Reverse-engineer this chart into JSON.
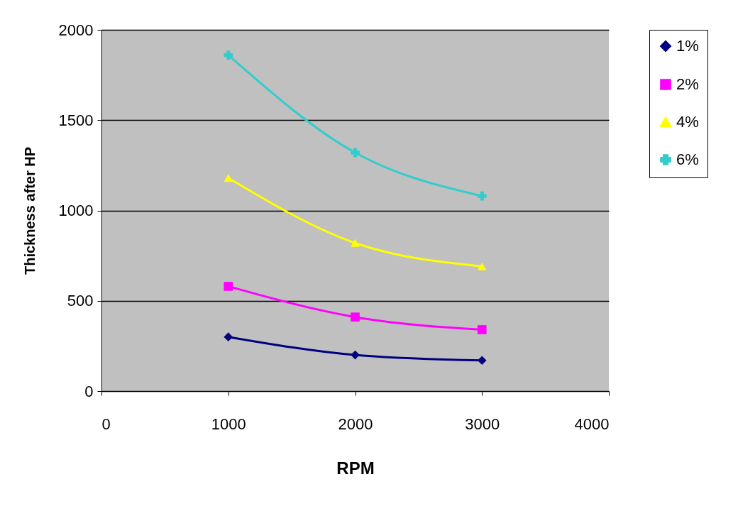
{
  "chart_data": {
    "type": "line",
    "xlabel": "RPM",
    "ylabel": "Thickness after HP",
    "x": [
      1000,
      2000,
      3000
    ],
    "series": [
      {
        "name": "1%",
        "color": "#000080",
        "marker": "diamond",
        "values": [
          300,
          200,
          170
        ]
      },
      {
        "name": "2%",
        "color": "#ff00ff",
        "marker": "square",
        "values": [
          580,
          410,
          340
        ]
      },
      {
        "name": "4%",
        "color": "#ffff00",
        "marker": "triangle",
        "values": [
          1180,
          820,
          690
        ]
      },
      {
        "name": "6%",
        "color": "#33cccc",
        "marker": "cross",
        "values": [
          1860,
          1320,
          1080
        ]
      }
    ],
    "xlim": [
      0,
      4000
    ],
    "xticks": [
      0,
      1000,
      2000,
      3000,
      4000
    ],
    "ylim": [
      0,
      2000
    ],
    "yticks": [
      0,
      500,
      1000,
      1500,
      2000
    ],
    "grid": "y",
    "legend": "right"
  }
}
